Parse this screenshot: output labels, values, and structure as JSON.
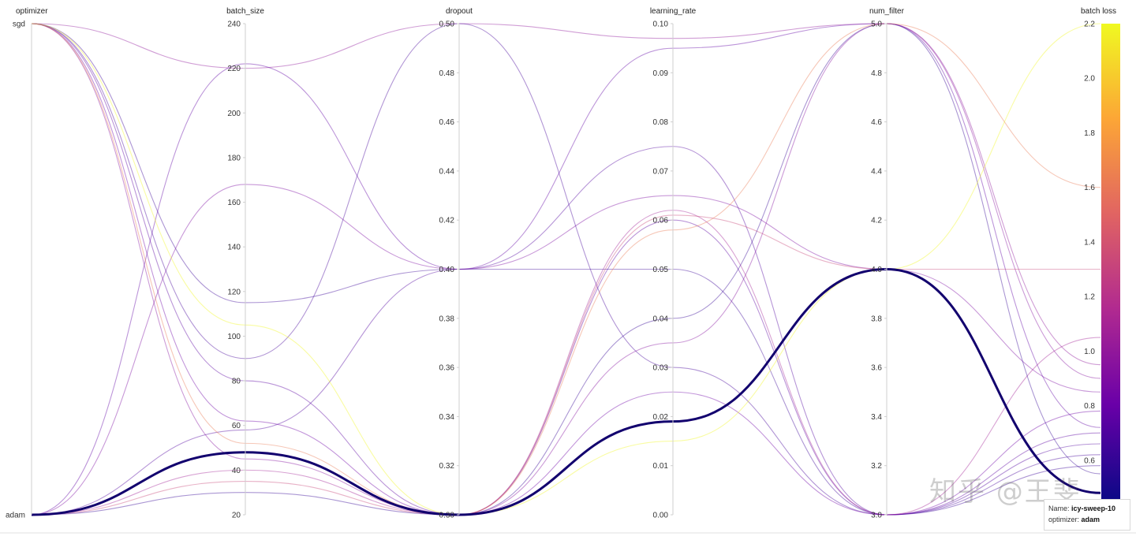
{
  "chart_data": {
    "type": "parallel_coordinates",
    "axes": [
      {
        "key": "optimizer",
        "label": "optimizer",
        "categorical": true,
        "categories": [
          "sgd",
          "adam"
        ]
      },
      {
        "key": "batch_size",
        "label": "batch_size",
        "range": [
          20,
          240
        ],
        "ticks": [
          240,
          220,
          200,
          180,
          160,
          140,
          120,
          100,
          80,
          60,
          40,
          20
        ]
      },
      {
        "key": "dropout",
        "label": "dropout",
        "range": [
          0.3,
          0.5
        ],
        "ticks": [
          "0.50",
          "0.48",
          "0.46",
          "0.44",
          "0.42",
          "0.40",
          "0.38",
          "0.36",
          "0.34",
          "0.32",
          "0.30"
        ]
      },
      {
        "key": "learning_rate",
        "label": "learning_rate",
        "range": [
          0.0,
          0.1
        ],
        "ticks": [
          "0.10",
          "0.09",
          "0.08",
          "0.07",
          "0.06",
          "0.05",
          "0.04",
          "0.03",
          "0.02",
          "0.01",
          "0.00"
        ]
      },
      {
        "key": "num_filter",
        "label": "num_filter",
        "range": [
          3.0,
          5.0
        ],
        "ticks": [
          "5.0",
          "4.8",
          "4.6",
          "4.4",
          "4.2",
          "4.0",
          "3.8",
          "3.6",
          "3.4",
          "3.2",
          "3.0"
        ]
      },
      {
        "key": "batch_loss",
        "label": "batch loss",
        "range": [
          0.4,
          2.2
        ],
        "ticks": [
          "2.2",
          "2.0",
          "1.8",
          "1.6",
          "1.4",
          "1.2",
          "1.0",
          "0.8",
          "0.6"
        ]
      }
    ],
    "colorscale": [
      "#0d0887",
      "#6a00a8",
      "#b12a90",
      "#e16462",
      "#fca636",
      "#f0f921"
    ],
    "runs": [
      {
        "optimizer": "adam",
        "batch_size": 48,
        "dropout": 0.3,
        "learning_rate": 0.019,
        "num_filter": 4.0,
        "batch_loss": 0.48,
        "highlight": true
      },
      {
        "optimizer": "sgd",
        "batch_size": 220,
        "dropout": 0.5,
        "learning_rate": 0.097,
        "num_filter": 5.0,
        "batch_loss": 0.95
      },
      {
        "optimizer": "sgd",
        "batch_size": 115,
        "dropout": 0.4,
        "learning_rate": 0.05,
        "num_filter": 3.0,
        "batch_loss": 0.58
      },
      {
        "optimizer": "adam",
        "batch_size": 222,
        "dropout": 0.4,
        "learning_rate": 0.095,
        "num_filter": 5.0,
        "batch_loss": 0.72
      },
      {
        "optimizer": "adam",
        "batch_size": 168,
        "dropout": 0.4,
        "learning_rate": 0.065,
        "num_filter": 4.0,
        "batch_loss": 0.85
      },
      {
        "optimizer": "adam",
        "batch_size": 58,
        "dropout": 0.4,
        "learning_rate": 0.075,
        "num_filter": 3.0,
        "batch_loss": 0.66
      },
      {
        "optimizer": "sgd",
        "batch_size": 90,
        "dropout": 0.5,
        "learning_rate": 0.03,
        "num_filter": 3.0,
        "batch_loss": 0.62
      },
      {
        "optimizer": "sgd",
        "batch_size": 80,
        "dropout": 0.3,
        "learning_rate": 0.06,
        "num_filter": 3.0,
        "batch_loss": 0.7
      },
      {
        "optimizer": "sgd",
        "batch_size": 62,
        "dropout": 0.3,
        "learning_rate": 0.025,
        "num_filter": 3.0,
        "batch_loss": 0.78
      },
      {
        "optimizer": "sgd",
        "batch_size": 45,
        "dropout": 0.3,
        "learning_rate": 0.035,
        "num_filter": 5.0,
        "batch_loss": 0.9
      },
      {
        "optimizer": "adam",
        "batch_size": 40,
        "dropout": 0.3,
        "learning_rate": 0.062,
        "num_filter": 3.0,
        "batch_loss": 1.05
      },
      {
        "optimizer": "adam",
        "batch_size": 35,
        "dropout": 0.3,
        "learning_rate": 0.061,
        "num_filter": 4.0,
        "batch_loss": 1.3
      },
      {
        "optimizer": "adam",
        "batch_size": 30,
        "dropout": 0.3,
        "learning_rate": 0.04,
        "num_filter": 5.0,
        "batch_loss": 0.55
      },
      {
        "optimizer": "sgd",
        "batch_size": 52,
        "dropout": 0.3,
        "learning_rate": 0.058,
        "num_filter": 5.0,
        "batch_loss": 1.6
      },
      {
        "optimizer": "sgd",
        "batch_size": 105,
        "dropout": 0.3,
        "learning_rate": 0.015,
        "num_filter": 4.0,
        "batch_loss": 2.2
      }
    ]
  },
  "tooltip": {
    "name_label": "Name:",
    "name_value": "icy-sweep-10",
    "optimizer_label": "optimizer:",
    "optimizer_value": "adam"
  },
  "watermark": "知乎 @王斐"
}
